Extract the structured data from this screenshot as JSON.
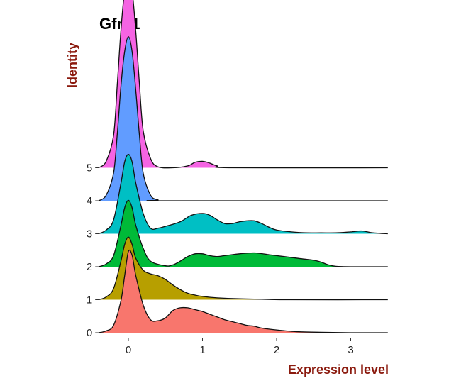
{
  "chart_data": {
    "type": "ridgeline",
    "title": "Gfra1",
    "xlabel": "Expression level",
    "ylabel": "Identity",
    "xlim": [
      -0.4,
      3.55
    ],
    "xticks": [
      0,
      1,
      2,
      3
    ],
    "grid": false,
    "legend": "none",
    "label_color": "#8b1a0e",
    "series": [
      {
        "name": "0",
        "color": "#f8766d",
        "points": [
          [
            -0.4,
            0.0
          ],
          [
            -0.3,
            0.02
          ],
          [
            -0.2,
            0.08
          ],
          [
            -0.1,
            0.35
          ],
          [
            -0.05,
            0.62
          ],
          [
            0,
            0.88
          ],
          [
            0.05,
            0.84
          ],
          [
            0.1,
            0.62
          ],
          [
            0.2,
            0.3
          ],
          [
            0.3,
            0.14
          ],
          [
            0.4,
            0.13
          ],
          [
            0.5,
            0.16
          ],
          [
            0.6,
            0.24
          ],
          [
            0.7,
            0.27
          ],
          [
            0.8,
            0.27
          ],
          [
            0.9,
            0.25
          ],
          [
            1.0,
            0.23
          ],
          [
            1.1,
            0.2
          ],
          [
            1.2,
            0.17
          ],
          [
            1.3,
            0.14
          ],
          [
            1.4,
            0.12
          ],
          [
            1.5,
            0.1
          ],
          [
            1.6,
            0.08
          ],
          [
            1.7,
            0.07
          ],
          [
            1.8,
            0.05
          ],
          [
            2.0,
            0.03
          ],
          [
            2.3,
            0.01
          ],
          [
            2.6,
            0.005
          ],
          [
            3.0,
            0.0
          ],
          [
            3.5,
            0.0
          ]
        ]
      },
      {
        "name": "1",
        "color": "#b79f00",
        "points": [
          [
            -0.4,
            0.0
          ],
          [
            -0.3,
            0.03
          ],
          [
            -0.2,
            0.12
          ],
          [
            -0.1,
            0.42
          ],
          [
            -0.05,
            0.6
          ],
          [
            0,
            0.68
          ],
          [
            0.05,
            0.6
          ],
          [
            0.1,
            0.45
          ],
          [
            0.2,
            0.32
          ],
          [
            0.3,
            0.28
          ],
          [
            0.4,
            0.26
          ],
          [
            0.5,
            0.22
          ],
          [
            0.6,
            0.16
          ],
          [
            0.7,
            0.11
          ],
          [
            0.8,
            0.07
          ],
          [
            0.9,
            0.05
          ],
          [
            1.0,
            0.035
          ],
          [
            1.2,
            0.02
          ],
          [
            1.5,
            0.01
          ],
          [
            1.8,
            0.005
          ],
          [
            2.2,
            0.0
          ],
          [
            3.5,
            0.0
          ]
        ]
      },
      {
        "name": "2",
        "color": "#00ba38",
        "points": [
          [
            -0.4,
            0.0
          ],
          [
            -0.3,
            0.03
          ],
          [
            -0.2,
            0.12
          ],
          [
            -0.1,
            0.45
          ],
          [
            -0.05,
            0.64
          ],
          [
            0,
            0.72
          ],
          [
            0.05,
            0.64
          ],
          [
            0.1,
            0.45
          ],
          [
            0.2,
            0.2
          ],
          [
            0.3,
            0.06
          ],
          [
            0.5,
            0.01
          ],
          [
            0.6,
            0.02
          ],
          [
            0.7,
            0.06
          ],
          [
            0.8,
            0.11
          ],
          [
            0.9,
            0.14
          ],
          [
            1.0,
            0.14
          ],
          [
            1.1,
            0.12
          ],
          [
            1.2,
            0.11
          ],
          [
            1.3,
            0.12
          ],
          [
            1.5,
            0.14
          ],
          [
            1.7,
            0.15
          ],
          [
            1.9,
            0.13
          ],
          [
            2.1,
            0.11
          ],
          [
            2.3,
            0.09
          ],
          [
            2.5,
            0.07
          ],
          [
            2.6,
            0.05
          ],
          [
            2.7,
            0.02
          ],
          [
            2.8,
            0.005
          ],
          [
            3.0,
            0.0
          ],
          [
            3.5,
            0.0
          ]
        ]
      },
      {
        "name": "3",
        "color": "#00bfc4",
        "points": [
          [
            -0.4,
            0.0
          ],
          [
            -0.3,
            0.04
          ],
          [
            -0.2,
            0.15
          ],
          [
            -0.1,
            0.55
          ],
          [
            -0.05,
            0.78
          ],
          [
            0,
            0.86
          ],
          [
            0.05,
            0.78
          ],
          [
            0.1,
            0.55
          ],
          [
            0.2,
            0.22
          ],
          [
            0.3,
            0.06
          ],
          [
            0.4,
            0.06
          ],
          [
            0.5,
            0.08
          ],
          [
            0.7,
            0.13
          ],
          [
            0.85,
            0.2
          ],
          [
            1.0,
            0.22
          ],
          [
            1.1,
            0.2
          ],
          [
            1.2,
            0.15
          ],
          [
            1.3,
            0.11
          ],
          [
            1.4,
            0.11
          ],
          [
            1.5,
            0.13
          ],
          [
            1.6,
            0.14
          ],
          [
            1.7,
            0.14
          ],
          [
            1.8,
            0.11
          ],
          [
            1.9,
            0.07
          ],
          [
            2.0,
            0.04
          ],
          [
            2.2,
            0.02
          ],
          [
            2.4,
            0.01
          ],
          [
            2.6,
            0.01
          ],
          [
            2.8,
            0.01
          ],
          [
            3.0,
            0.02
          ],
          [
            3.15,
            0.03
          ],
          [
            3.3,
            0.01
          ],
          [
            3.5,
            0.0
          ]
        ]
      },
      {
        "name": "4",
        "color": "#619cff",
        "points": [
          [
            -0.4,
            0.0
          ],
          [
            -0.3,
            0.06
          ],
          [
            -0.2,
            0.3
          ],
          [
            -0.15,
            0.72
          ],
          [
            -0.1,
            1.25
          ],
          [
            -0.05,
            1.62
          ],
          [
            0,
            1.78
          ],
          [
            0.05,
            1.62
          ],
          [
            0.1,
            1.2
          ],
          [
            0.15,
            0.7
          ],
          [
            0.2,
            0.3
          ],
          [
            0.3,
            0.06
          ],
          [
            0.4,
            0.01
          ],
          [
            0.5,
            0.0
          ],
          [
            3.5,
            0.0
          ]
        ]
      },
      {
        "name": "5",
        "color": "#f564e3",
        "points": [
          [
            -0.4,
            0.0
          ],
          [
            -0.3,
            0.07
          ],
          [
            -0.2,
            0.35
          ],
          [
            -0.15,
            0.9
          ],
          [
            -0.1,
            1.5
          ],
          [
            -0.05,
            1.92
          ],
          [
            0,
            2.04
          ],
          [
            0.05,
            1.92
          ],
          [
            0.1,
            1.48
          ],
          [
            0.15,
            0.9
          ],
          [
            0.2,
            0.4
          ],
          [
            0.3,
            0.1
          ],
          [
            0.4,
            0.01
          ],
          [
            0.6,
            0.0
          ],
          [
            0.8,
            0.02
          ],
          [
            0.9,
            0.06
          ],
          [
            1.0,
            0.07
          ],
          [
            1.1,
            0.05
          ],
          [
            1.2,
            0.02
          ],
          [
            1.4,
            0.0
          ],
          [
            3.5,
            0.0
          ]
        ]
      }
    ]
  }
}
